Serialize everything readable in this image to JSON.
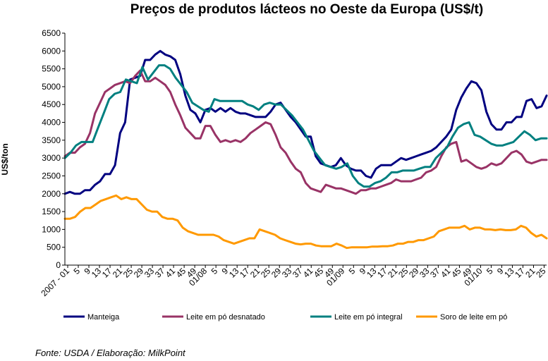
{
  "chart_data": {
    "type": "line",
    "title": "Preços de produtos lácteos no Oeste da Europa (US$/t)",
    "xlabel": "",
    "ylabel": "US$/ton",
    "ylim": [
      0,
      6500
    ],
    "yticks": [
      0,
      500,
      1000,
      1500,
      2000,
      2500,
      3000,
      3500,
      4000,
      4500,
      5000,
      5500,
      6000,
      6500
    ],
    "x_tick_labels": [
      "2007 - 01",
      "5",
      "9",
      "13",
      "17",
      "21",
      "25",
      "29",
      "33",
      "37",
      "41",
      "45",
      "49",
      "01/08",
      "5",
      "9",
      "13",
      "17",
      "21",
      "25",
      "29",
      "33",
      "37",
      "41",
      "45",
      "49",
      "01/09",
      "5",
      "9",
      "13",
      "17",
      "21",
      "25",
      "29",
      "33",
      "37",
      "41",
      "45",
      "49",
      "01/10",
      "5",
      "9",
      "13",
      "17",
      "21",
      "25"
    ],
    "grid": false,
    "legend_position": "bottom",
    "source_note": "Fonte: USDA / Elaboração: MilkPoint",
    "series": [
      {
        "name": "Manteiga",
        "color": "#000080",
        "values": [
          2000,
          2050,
          2000,
          2000,
          2100,
          2100,
          2250,
          2350,
          2550,
          2550,
          2800,
          3700,
          4000,
          5200,
          5250,
          5300,
          5750,
          5750,
          5900,
          6000,
          5900,
          5850,
          5750,
          5350,
          4750,
          4350,
          4250,
          4000,
          4350,
          4400,
          4300,
          4400,
          4300,
          4400,
          4300,
          4250,
          4250,
          4200,
          4150,
          4150,
          4150,
          4300,
          4500,
          4550,
          4350,
          4150,
          4000,
          3800,
          3600,
          3600,
          3050,
          2850,
          2800,
          2750,
          2800,
          3000,
          2800,
          2700,
          2650,
          2650,
          2500,
          2450,
          2700,
          2800,
          2800,
          2800,
          2900,
          3000,
          2950,
          3000,
          3050,
          3100,
          3150,
          3200,
          3300,
          3450,
          3600,
          3800,
          4350,
          4700,
          4950,
          5150,
          5100,
          4900,
          4300,
          3950,
          3800,
          3800,
          4000,
          4000,
          4150,
          4150,
          4600,
          4650,
          4400,
          4450,
          4750
        ]
      },
      {
        "name": "Leite em pó desnatado",
        "color": "#993366",
        "values": [
          3050,
          3150,
          3150,
          3300,
          3400,
          3700,
          4250,
          4550,
          4850,
          4950,
          5050,
          5100,
          5150,
          5100,
          5300,
          5450,
          5150,
          5150,
          5250,
          5150,
          5050,
          4850,
          4500,
          4200,
          3850,
          3700,
          3550,
          3550,
          3900,
          3900,
          3650,
          3450,
          3500,
          3450,
          3500,
          3450,
          3550,
          3700,
          3800,
          3900,
          4000,
          3950,
          3650,
          3300,
          3150,
          2900,
          2700,
          2600,
          2300,
          2150,
          2100,
          2050,
          2250,
          2200,
          2150,
          2150,
          2100,
          2050,
          2000,
          2100,
          2100,
          2150,
          2150,
          2200,
          2250,
          2300,
          2400,
          2350,
          2350,
          2350,
          2400,
          2450,
          2600,
          2650,
          2750,
          3050,
          3300,
          3400,
          3450,
          2900,
          2950,
          2850,
          2750,
          2700,
          2750,
          2850,
          2800,
          2850,
          3000,
          3150,
          3200,
          3100,
          2900,
          2850,
          2900,
          2950,
          2950
        ]
      },
      {
        "name": "Leite em pó integral",
        "color": "#008080",
        "values": [
          3000,
          3150,
          3350,
          3450,
          3450,
          3450,
          3850,
          4250,
          4650,
          4800,
          4850,
          5200,
          5150,
          5100,
          5550,
          5200,
          5400,
          5600,
          5600,
          5500,
          5250,
          5050,
          4850,
          4550,
          4450,
          4350,
          4300,
          4650,
          4600,
          4600,
          4600,
          4600,
          4600,
          4500,
          4450,
          4350,
          4500,
          4550,
          4500,
          4500,
          4350,
          4200,
          4000,
          3800,
          3500,
          3200,
          3000,
          2800,
          2750,
          2700,
          2750,
          2850,
          2500,
          2300,
          2200,
          2200,
          2300,
          2350,
          2450,
          2600,
          2600,
          2650,
          2650,
          2650,
          2700,
          2750,
          2750,
          3000,
          3150,
          3300,
          3600,
          3850,
          3950,
          4000,
          3650,
          3600,
          3500,
          3400,
          3350,
          3350,
          3400,
          3450,
          3600,
          3750,
          3650,
          3500,
          3550,
          3550
        ]
      },
      {
        "name": "Soro de leite em pó",
        "color": "#ff9900",
        "values": [
          1300,
          1300,
          1350,
          1500,
          1600,
          1600,
          1700,
          1800,
          1850,
          1900,
          1950,
          1850,
          1900,
          1850,
          1850,
          1700,
          1550,
          1500,
          1500,
          1350,
          1300,
          1300,
          1250,
          1050,
          950,
          900,
          850,
          850,
          850,
          850,
          800,
          700,
          650,
          600,
          650,
          700,
          750,
          750,
          1000,
          950,
          900,
          850,
          750,
          700,
          650,
          600,
          580,
          600,
          600,
          550,
          530,
          530,
          530,
          600,
          550,
          480,
          500,
          500,
          500,
          500,
          520,
          520,
          530,
          530,
          550,
          600,
          600,
          650,
          650,
          700,
          700,
          750,
          800,
          950,
          1000,
          1050,
          1050,
          1050,
          1100,
          1000,
          1050,
          1050,
          1000,
          1000,
          980,
          1000,
          980,
          980,
          1000,
          1100,
          1050,
          900,
          800,
          850,
          750
        ]
      }
    ]
  }
}
